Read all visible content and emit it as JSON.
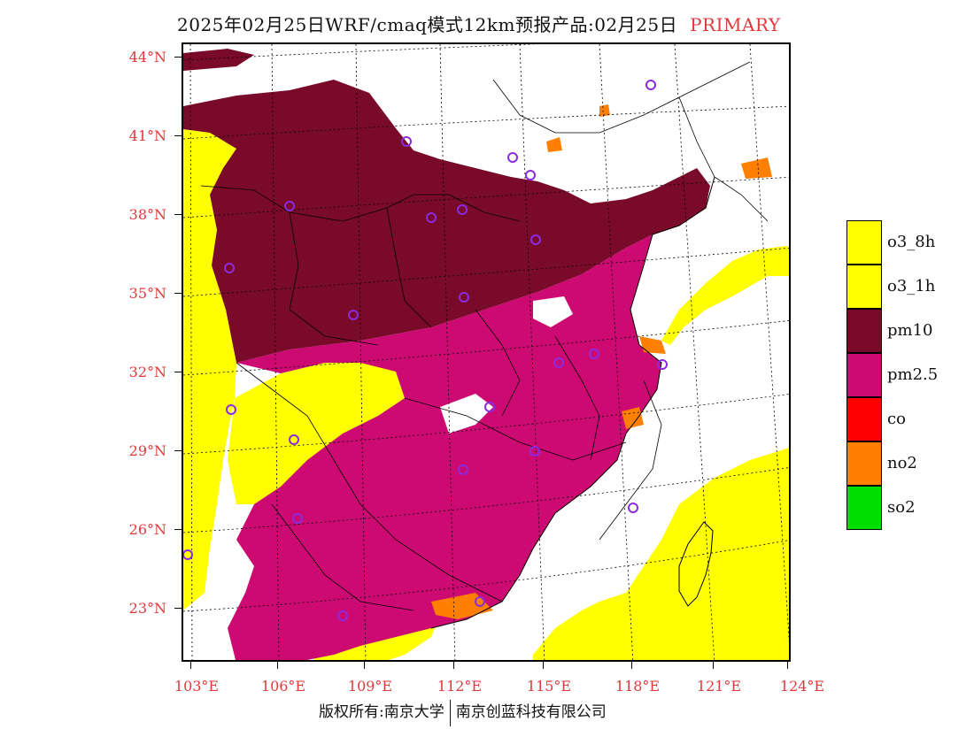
{
  "header": {
    "title": "2025年02月25日WRF/cmaq模式12km预报产品:02月25日",
    "primary_label": "PRIMARY"
  },
  "axes": {
    "latitude_labels": [
      "44°N",
      "41°N",
      "38°N",
      "35°N",
      "32°N",
      "29°N",
      "26°N",
      "23°N"
    ],
    "longitude_labels": [
      "103°E",
      "106°E",
      "109°E",
      "112°E",
      "115°E",
      "118°E",
      "121°E",
      "124°E"
    ]
  },
  "legend": {
    "items": [
      {
        "label": "o3_8h",
        "color": "#ffff00"
      },
      {
        "label": "o3_1h",
        "color": "#ffff00"
      },
      {
        "label": "pm10",
        "color": "#7a0a2a"
      },
      {
        "label": "pm2.5",
        "color": "#cc0a72"
      },
      {
        "label": "co",
        "color": "#ff0000"
      },
      {
        "label": "no2",
        "color": "#ff7f00"
      },
      {
        "label": "so2",
        "color": "#00dd00"
      }
    ]
  },
  "footer": {
    "copyright_left": "版权所有:南京大学",
    "copyright_right": "南京创蓝科技有限公司"
  },
  "colors": {
    "pm10": "#7a0a2a",
    "pm25": "#cc0a72",
    "o3": "#ffff00",
    "no2": "#ff7f00",
    "station": "#8a2be2",
    "axis_label": "#e0393b"
  }
}
